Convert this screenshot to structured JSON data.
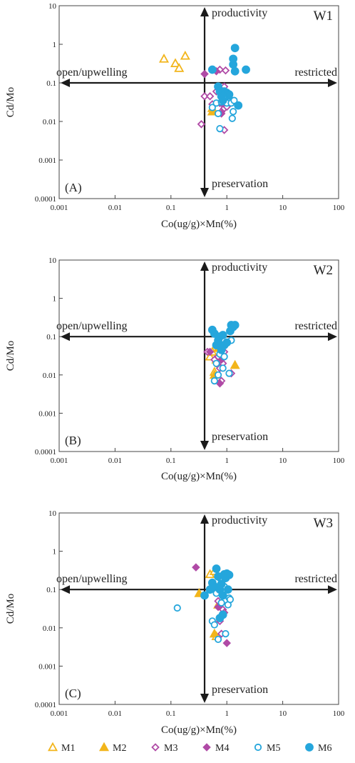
{
  "chart_data": [
    {
      "type": "scatter",
      "panel_label": "(A)",
      "well": "W1",
      "xlabel": "Co(ug/g)×Mn(%)",
      "ylabel": "Cd/Mo",
      "xscale": "log",
      "yscale": "log",
      "xlim": [
        0.001,
        100
      ],
      "ylim": [
        0.0001,
        10
      ],
      "x_ticks": [
        "0.001",
        "0.01",
        "0.1",
        "1",
        "10",
        "100"
      ],
      "y_ticks": [
        "10",
        "1",
        "0.1",
        "0.01",
        "0.001",
        "0.0001"
      ],
      "grid": false,
      "directions": {
        "up": "productivity",
        "down": "preservation",
        "left": "open/upwelling",
        "right": "restricted"
      },
      "cross": {
        "x": 0.4,
        "y": 0.1
      },
      "series": [
        {
          "name": "M1",
          "points": [
            [
              0.075,
              0.42
            ],
            [
              0.12,
              0.32
            ],
            [
              0.14,
              0.24
            ],
            [
              0.18,
              0.5
            ]
          ]
        },
        {
          "name": "M2",
          "points": [
            [
              0.55,
              0.018
            ],
            [
              0.55,
              0.022
            ]
          ]
        },
        {
          "name": "M3",
          "points": [
            [
              0.35,
              0.0085
            ],
            [
              0.4,
              0.045
            ],
            [
              0.5,
              0.045
            ],
            [
              0.55,
              0.028
            ],
            [
              0.65,
              0.06
            ],
            [
              0.75,
              0.22
            ],
            [
              0.8,
              0.03
            ],
            [
              0.8,
              0.018
            ],
            [
              0.9,
              0.022
            ],
            [
              0.9,
              0.006
            ],
            [
              0.95,
              0.21
            ],
            [
              1.0,
              0.024
            ],
            [
              0.9,
              0.08
            ]
          ]
        },
        {
          "name": "M4",
          "points": [
            [
              0.4,
              0.17
            ],
            [
              0.65,
              0.2
            ],
            [
              0.75,
              0.03
            ],
            [
              0.8,
              0.016
            ]
          ]
        },
        {
          "name": "M5",
          "points": [
            [
              0.55,
              0.023
            ],
            [
              0.65,
              0.03
            ],
            [
              0.7,
              0.016
            ],
            [
              0.75,
              0.0065
            ],
            [
              0.8,
              0.032
            ],
            [
              0.9,
              0.04
            ],
            [
              1.0,
              0.03
            ],
            [
              1.1,
              0.045
            ],
            [
              1.2,
              0.03
            ],
            [
              1.25,
              0.012
            ],
            [
              1.3,
              0.018
            ],
            [
              1.35,
              0.035
            ]
          ]
        },
        {
          "name": "M6",
          "points": [
            [
              0.55,
              0.22
            ],
            [
              0.7,
              0.08
            ],
            [
              0.75,
              0.06
            ],
            [
              0.8,
              0.045
            ],
            [
              0.85,
              0.035
            ],
            [
              0.9,
              0.06
            ],
            [
              1.0,
              0.055
            ],
            [
              1.1,
              0.05
            ],
            [
              1.3,
              0.3
            ],
            [
              1.3,
              0.42
            ],
            [
              1.4,
              0.8
            ],
            [
              1.4,
              0.2
            ],
            [
              1.6,
              0.026
            ],
            [
              2.2,
              0.22
            ]
          ]
        }
      ]
    },
    {
      "type": "scatter",
      "panel_label": "(B)",
      "well": "W2",
      "xlabel": "Co(ug/g)×Mn(%)",
      "ylabel": "Cd/Mo",
      "xscale": "log",
      "yscale": "log",
      "xlim": [
        0.001,
        100
      ],
      "ylim": [
        0.0001,
        10
      ],
      "x_ticks": [
        "0.001",
        "0.01",
        "0.1",
        "1",
        "10",
        "100"
      ],
      "y_ticks": [
        "10",
        "1",
        "0.1",
        "0.01",
        "0.001",
        "0.0001"
      ],
      "grid": false,
      "directions": {
        "up": "productivity",
        "down": "preservation",
        "left": "open/upwelling",
        "right": "restricted"
      },
      "cross": {
        "x": 0.4,
        "y": 0.1
      },
      "series": [
        {
          "name": "M1",
          "points": [
            [
              0.5,
              0.03
            ],
            [
              0.55,
              0.04
            ],
            [
              0.6,
              0.012
            ],
            [
              0.65,
              0.025
            ],
            [
              0.7,
              0.06
            ]
          ]
        },
        {
          "name": "M2",
          "points": [
            [
              0.6,
              0.01
            ],
            [
              0.7,
              0.05
            ],
            [
              0.75,
              0.02
            ],
            [
              1.4,
              0.018
            ]
          ]
        },
        {
          "name": "M3",
          "points": [
            [
              0.45,
              0.04
            ],
            [
              0.6,
              0.025
            ],
            [
              0.7,
              0.03
            ],
            [
              0.75,
              0.015
            ],
            [
              0.8,
              0.007
            ],
            [
              0.85,
              0.02
            ],
            [
              0.9,
              0.04
            ],
            [
              1.2,
              0.011
            ]
          ]
        },
        {
          "name": "M4",
          "points": [
            [
              0.5,
              0.04
            ],
            [
              0.75,
              0.006
            ],
            [
              0.8,
              0.025
            ]
          ]
        },
        {
          "name": "M5",
          "points": [
            [
              0.6,
              0.007
            ],
            [
              0.65,
              0.02
            ],
            [
              0.7,
              0.01
            ],
            [
              0.75,
              0.035
            ],
            [
              0.8,
              0.045
            ],
            [
              0.85,
              0.015
            ],
            [
              0.9,
              0.03
            ],
            [
              1.1,
              0.011
            ],
            [
              1.2,
              0.08
            ]
          ]
        },
        {
          "name": "M6",
          "points": [
            [
              0.55,
              0.15
            ],
            [
              0.6,
              0.12
            ],
            [
              0.65,
              0.06
            ],
            [
              0.7,
              0.08
            ],
            [
              0.75,
              0.1
            ],
            [
              0.8,
              0.045
            ],
            [
              0.85,
              0.11
            ],
            [
              0.9,
              0.06
            ],
            [
              1.0,
              0.07
            ],
            [
              1.15,
              0.14
            ],
            [
              1.2,
              0.2
            ],
            [
              1.3,
              0.18
            ],
            [
              1.4,
              0.2
            ]
          ]
        }
      ]
    },
    {
      "type": "scatter",
      "panel_label": "(C)",
      "well": "W3",
      "xlabel": "Co(ug/g)×Mn(%)",
      "ylabel": "Cd/Mo",
      "xscale": "log",
      "yscale": "log",
      "xlim": [
        0.001,
        100
      ],
      "ylim": [
        0.0001,
        10
      ],
      "x_ticks": [
        "0.001",
        "0.01",
        "0.1",
        "1",
        "10",
        "100"
      ],
      "y_ticks": [
        "10",
        "1",
        "0.1",
        "0.01",
        "0.001",
        "0.0001"
      ],
      "grid": false,
      "directions": {
        "up": "productivity",
        "down": "preservation",
        "left": "open/upwelling",
        "right": "restricted"
      },
      "cross": {
        "x": 0.4,
        "y": 0.1
      },
      "series": [
        {
          "name": "M1",
          "points": [
            [
              0.5,
              0.25
            ],
            [
              0.6,
              0.3
            ],
            [
              0.65,
              0.006
            ],
            [
              0.7,
              0.04
            ]
          ]
        },
        {
          "name": "M2",
          "points": [
            [
              0.32,
              0.08
            ],
            [
              0.6,
              0.007
            ]
          ]
        },
        {
          "name": "M3",
          "points": [
            [
              0.7,
              0.05
            ],
            [
              0.75,
              0.015
            ],
            [
              0.8,
              0.007
            ],
            [
              0.85,
              0.03
            ],
            [
              0.9,
              0.025
            ]
          ]
        },
        {
          "name": "M4",
          "points": [
            [
              0.28,
              0.38
            ],
            [
              0.7,
              0.035
            ],
            [
              1.0,
              0.004
            ]
          ]
        },
        {
          "name": "M5",
          "points": [
            [
              0.13,
              0.033
            ],
            [
              0.55,
              0.015
            ],
            [
              0.6,
              0.012
            ],
            [
              0.65,
              0.08
            ],
            [
              0.7,
              0.005
            ],
            [
              0.75,
              0.2
            ],
            [
              0.8,
              0.045
            ],
            [
              0.9,
              0.12
            ],
            [
              0.95,
              0.007
            ],
            [
              1.05,
              0.04
            ],
            [
              1.1,
              0.06
            ],
            [
              1.15,
              0.055
            ]
          ]
        },
        {
          "name": "M6",
          "points": [
            [
              0.4,
              0.07
            ],
            [
              0.5,
              0.1
            ],
            [
              0.55,
              0.15
            ],
            [
              0.6,
              0.12
            ],
            [
              0.65,
              0.35
            ],
            [
              0.7,
              0.22
            ],
            [
              0.75,
              0.1
            ],
            [
              0.8,
              0.14
            ],
            [
              0.85,
              0.07
            ],
            [
              0.9,
              0.25
            ],
            [
              0.95,
              0.2
            ],
            [
              1.0,
              0.26
            ],
            [
              1.05,
              0.1
            ],
            [
              1.1,
              0.24
            ],
            [
              0.75,
              0.018
            ],
            [
              0.85,
              0.022
            ]
          ]
        }
      ]
    }
  ],
  "legend": {
    "entries": [
      {
        "name": "M1",
        "marker": "triangle-open",
        "color": "#f2b51b"
      },
      {
        "name": "M2",
        "marker": "triangle-filled",
        "color": "#f2b51b"
      },
      {
        "name": "M3",
        "marker": "diamond-open",
        "color": "#b04aa6"
      },
      {
        "name": "M4",
        "marker": "diamond-filled",
        "color": "#b04aa6"
      },
      {
        "name": "M5",
        "marker": "circle-open",
        "color": "#25a6dc"
      },
      {
        "name": "M6",
        "marker": "circle-filled",
        "color": "#25a6dc"
      }
    ]
  }
}
